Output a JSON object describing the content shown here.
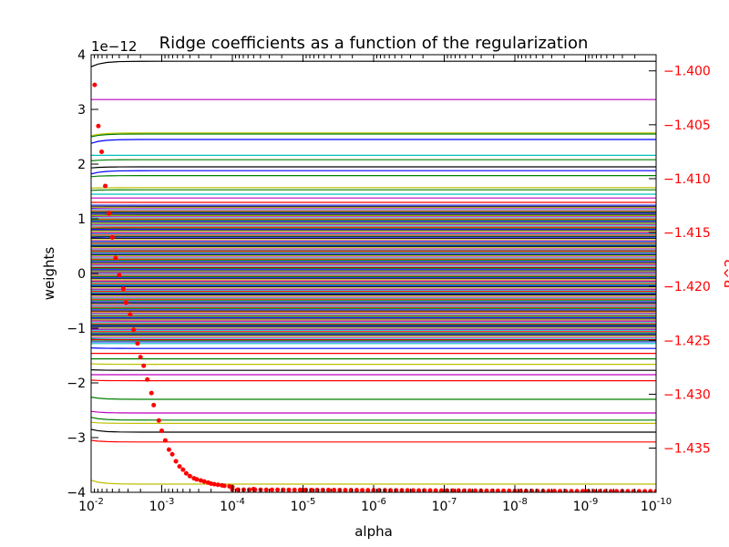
{
  "chart_data": {
    "type": "line",
    "title": "Ridge coefficients as a function of the regularization",
    "xlabel": "alpha",
    "ylabel": "weights",
    "y2label": "R^2",
    "xscale": "log",
    "xlim": [
      0.01,
      1e-10
    ],
    "x_ticks": [
      {
        "base": "10",
        "exp": "-2",
        "value": 0.01
      },
      {
        "base": "10",
        "exp": "-3",
        "value": 0.001
      },
      {
        "base": "10",
        "exp": "-4",
        "value": 0.0001
      },
      {
        "base": "10",
        "exp": "-5",
        "value": 1e-05
      },
      {
        "base": "10",
        "exp": "-6",
        "value": 1e-06
      },
      {
        "base": "10",
        "exp": "-7",
        "value": 1e-07
      },
      {
        "base": "10",
        "exp": "-8",
        "value": 1e-08
      },
      {
        "base": "10",
        "exp": "-9",
        "value": 1e-09
      },
      {
        "base": "10",
        "exp": "-10",
        "value": 1e-10
      }
    ],
    "y_offset_text": "1e−12",
    "ylim": [
      -4,
      4
    ],
    "y_ticks": [
      {
        "label": "−4",
        "value": -4
      },
      {
        "label": "−3",
        "value": -3
      },
      {
        "label": "−2",
        "value": -2
      },
      {
        "label": "−1",
        "value": -1
      },
      {
        "label": "0",
        "value": 0
      },
      {
        "label": "1",
        "value": 1
      },
      {
        "label": "2",
        "value": 2
      },
      {
        "label": "3",
        "value": 3
      },
      {
        "label": "4",
        "value": 4
      }
    ],
    "y2lim": [
      -1.4391,
      -1.3985
    ],
    "y2_ticks": [
      {
        "label": "−1.400",
        "value": -1.4
      },
      {
        "label": "−1.405",
        "value": -1.405
      },
      {
        "label": "−1.410",
        "value": -1.41
      },
      {
        "label": "−1.415",
        "value": -1.415
      },
      {
        "label": "−1.420",
        "value": -1.42
      },
      {
        "label": "−1.425",
        "value": -1.425
      },
      {
        "label": "−1.430",
        "value": -1.43
      },
      {
        "label": "−1.435",
        "value": -1.435
      }
    ],
    "grid": false,
    "legend": false,
    "colors": {
      "r2_marker": "#ff0000",
      "cycle": [
        "#0000ff",
        "#008000",
        "#ff0000",
        "#00bfbf",
        "#bf00bf",
        "#bfbf00",
        "#000000"
      ]
    },
    "weight_series_samples": [
      {
        "color": "#000000",
        "start": 3.78,
        "end": 3.88
      },
      {
        "color": "#bf00bf",
        "start": 3.18,
        "end": 3.18
      },
      {
        "color": "#bfbf00",
        "start": 2.52,
        "end": 2.57
      },
      {
        "color": "#008000",
        "start": 2.5,
        "end": 2.55
      },
      {
        "color": "#0000ff",
        "start": 2.38,
        "end": 2.45
      },
      {
        "color": "#00bfbf",
        "start": 2.16,
        "end": 2.16
      },
      {
        "color": "#008000",
        "start": 2.06,
        "end": 2.08
      },
      {
        "color": "#000000",
        "start": 1.93,
        "end": 1.95
      },
      {
        "color": "#0000ff",
        "start": 1.82,
        "end": 1.88
      },
      {
        "color": "#008000",
        "start": 1.77,
        "end": 1.79
      },
      {
        "color": "#bfbf00",
        "start": 1.56,
        "end": 1.57
      },
      {
        "color": "#008000",
        "start": 1.52,
        "end": 1.53
      },
      {
        "color": "#00bfbf",
        "start": 1.45,
        "end": 1.45
      },
      {
        "color": "#bf00bf",
        "start": 1.38,
        "end": 1.38
      },
      {
        "color": "#ff0000",
        "start": 1.3,
        "end": 1.3
      },
      {
        "color": "#0000ff",
        "start": 1.2,
        "end": 1.21
      },
      {
        "color": "#000000",
        "start": 1.12,
        "end": 1.12
      },
      {
        "color": "#008000",
        "start": 1.05,
        "end": 1.06
      },
      {
        "color": "#bfbf00",
        "start": 0.98,
        "end": 0.98
      },
      {
        "color": "#00bfbf",
        "start": 0.9,
        "end": 0.9
      },
      {
        "color": "#ff0000",
        "start": 0.82,
        "end": 0.83
      },
      {
        "color": "#bf00bf",
        "start": 0.74,
        "end": 0.74
      },
      {
        "color": "#000000",
        "start": 0.66,
        "end": 0.67
      },
      {
        "color": "#0000ff",
        "start": 0.58,
        "end": 0.58
      },
      {
        "color": "#008000",
        "start": 0.5,
        "end": 0.5
      },
      {
        "color": "#ff0000",
        "start": 0.42,
        "end": 0.42
      },
      {
        "color": "#00bfbf",
        "start": 0.34,
        "end": 0.34
      },
      {
        "color": "#bfbf00",
        "start": 0.26,
        "end": 0.26
      },
      {
        "color": "#bf00bf",
        "start": 0.18,
        "end": 0.18
      },
      {
        "color": "#000000",
        "start": 0.1,
        "end": 0.1
      },
      {
        "color": "#0000ff",
        "start": 0.02,
        "end": 0.02
      },
      {
        "color": "#008000",
        "start": -0.06,
        "end": -0.06
      },
      {
        "color": "#ff0000",
        "start": -0.14,
        "end": -0.14
      },
      {
        "color": "#00bfbf",
        "start": -0.22,
        "end": -0.22
      },
      {
        "color": "#bf00bf",
        "start": -0.3,
        "end": -0.3
      },
      {
        "color": "#000000",
        "start": -0.38,
        "end": -0.38
      },
      {
        "color": "#bfbf00",
        "start": -0.46,
        "end": -0.46
      },
      {
        "color": "#0000ff",
        "start": -0.54,
        "end": -0.55
      },
      {
        "color": "#008000",
        "start": -0.62,
        "end": -0.62
      },
      {
        "color": "#ff0000",
        "start": -0.7,
        "end": -0.7
      },
      {
        "color": "#00bfbf",
        "start": -0.78,
        "end": -0.78
      },
      {
        "color": "#bf00bf",
        "start": -0.86,
        "end": -0.87
      },
      {
        "color": "#000000",
        "start": -0.94,
        "end": -0.94
      },
      {
        "color": "#0000ff",
        "start": -1.02,
        "end": -1.02
      },
      {
        "color": "#008000",
        "start": -1.1,
        "end": -1.1
      },
      {
        "color": "#000000",
        "start": -1.2,
        "end": -1.21
      },
      {
        "color": "#00bfbf",
        "start": -1.28,
        "end": -1.28
      },
      {
        "color": "#0000ff",
        "start": -1.36,
        "end": -1.37
      },
      {
        "color": "#ff0000",
        "start": -1.46,
        "end": -1.46
      },
      {
        "color": "#008000",
        "start": -1.56,
        "end": -1.56
      },
      {
        "color": "#bfbf00",
        "start": -1.65,
        "end": -1.66
      },
      {
        "color": "#000000",
        "start": -1.76,
        "end": -1.77
      },
      {
        "color": "#bf00bf",
        "start": -1.85,
        "end": -1.85
      },
      {
        "color": "#ff0000",
        "start": -1.95,
        "end": -1.96
      },
      {
        "color": "#008000",
        "start": -2.26,
        "end": -2.3
      },
      {
        "color": "#bf00bf",
        "start": -2.52,
        "end": -2.55
      },
      {
        "color": "#008000",
        "start": -2.63,
        "end": -2.68
      },
      {
        "color": "#bfbf00",
        "start": -2.72,
        "end": -2.74
      },
      {
        "color": "#000000",
        "start": -2.85,
        "end": -2.9
      },
      {
        "color": "#ff0000",
        "start": -3.05,
        "end": -3.08
      },
      {
        "color": "#bfbf00",
        "start": -3.78,
        "end": -3.85
      }
    ],
    "r2_series": {
      "color": "#ff0000",
      "marker": "dot",
      "x": [
        0.0089,
        0.0079,
        0.0071,
        0.0063,
        0.0056,
        0.005,
        0.0045,
        0.004,
        0.0035,
        0.0032,
        0.0028,
        0.0025,
        0.0022,
        0.002,
        0.0018,
        0.0016,
        0.0014,
        0.0013,
        0.0011,
        0.001,
        0.00089,
        0.00079,
        0.00071,
        0.00063,
        0.00056,
        0.0005,
        0.00045,
        0.0004,
        0.00035,
        0.00032,
        0.00028,
        0.00025,
        0.00022,
        0.0002,
        0.00018,
        0.00016,
        0.00014,
        0.00013,
        0.00011,
        0.0001,
        5e-05,
        1e-05,
        1e-06,
        1e-07,
        1e-08,
        1e-09,
        1e-10
      ],
      "y": [
        -1.4013,
        -1.40512,
        -1.40751,
        -1.41068,
        -1.41323,
        -1.41545,
        -1.41735,
        -1.41895,
        -1.42022,
        -1.42149,
        -1.4226,
        -1.42402,
        -1.42529,
        -1.42656,
        -1.42736,
        -1.42863,
        -1.42989,
        -1.43101,
        -1.43244,
        -1.43339,
        -1.43429,
        -1.43514,
        -1.43557,
        -1.43622,
        -1.4367,
        -1.437,
        -1.43734,
        -1.4376,
        -1.4378,
        -1.4379,
        -1.438,
        -1.4381,
        -1.4382,
        -1.4383,
        -1.43835,
        -1.4384,
        -1.43845,
        -1.4385,
        -1.43855,
        -1.4386,
        -1.4388,
        -1.4389,
        -1.43895,
        -1.43898,
        -1.439,
        -1.439,
        -1.439
      ]
    }
  }
}
